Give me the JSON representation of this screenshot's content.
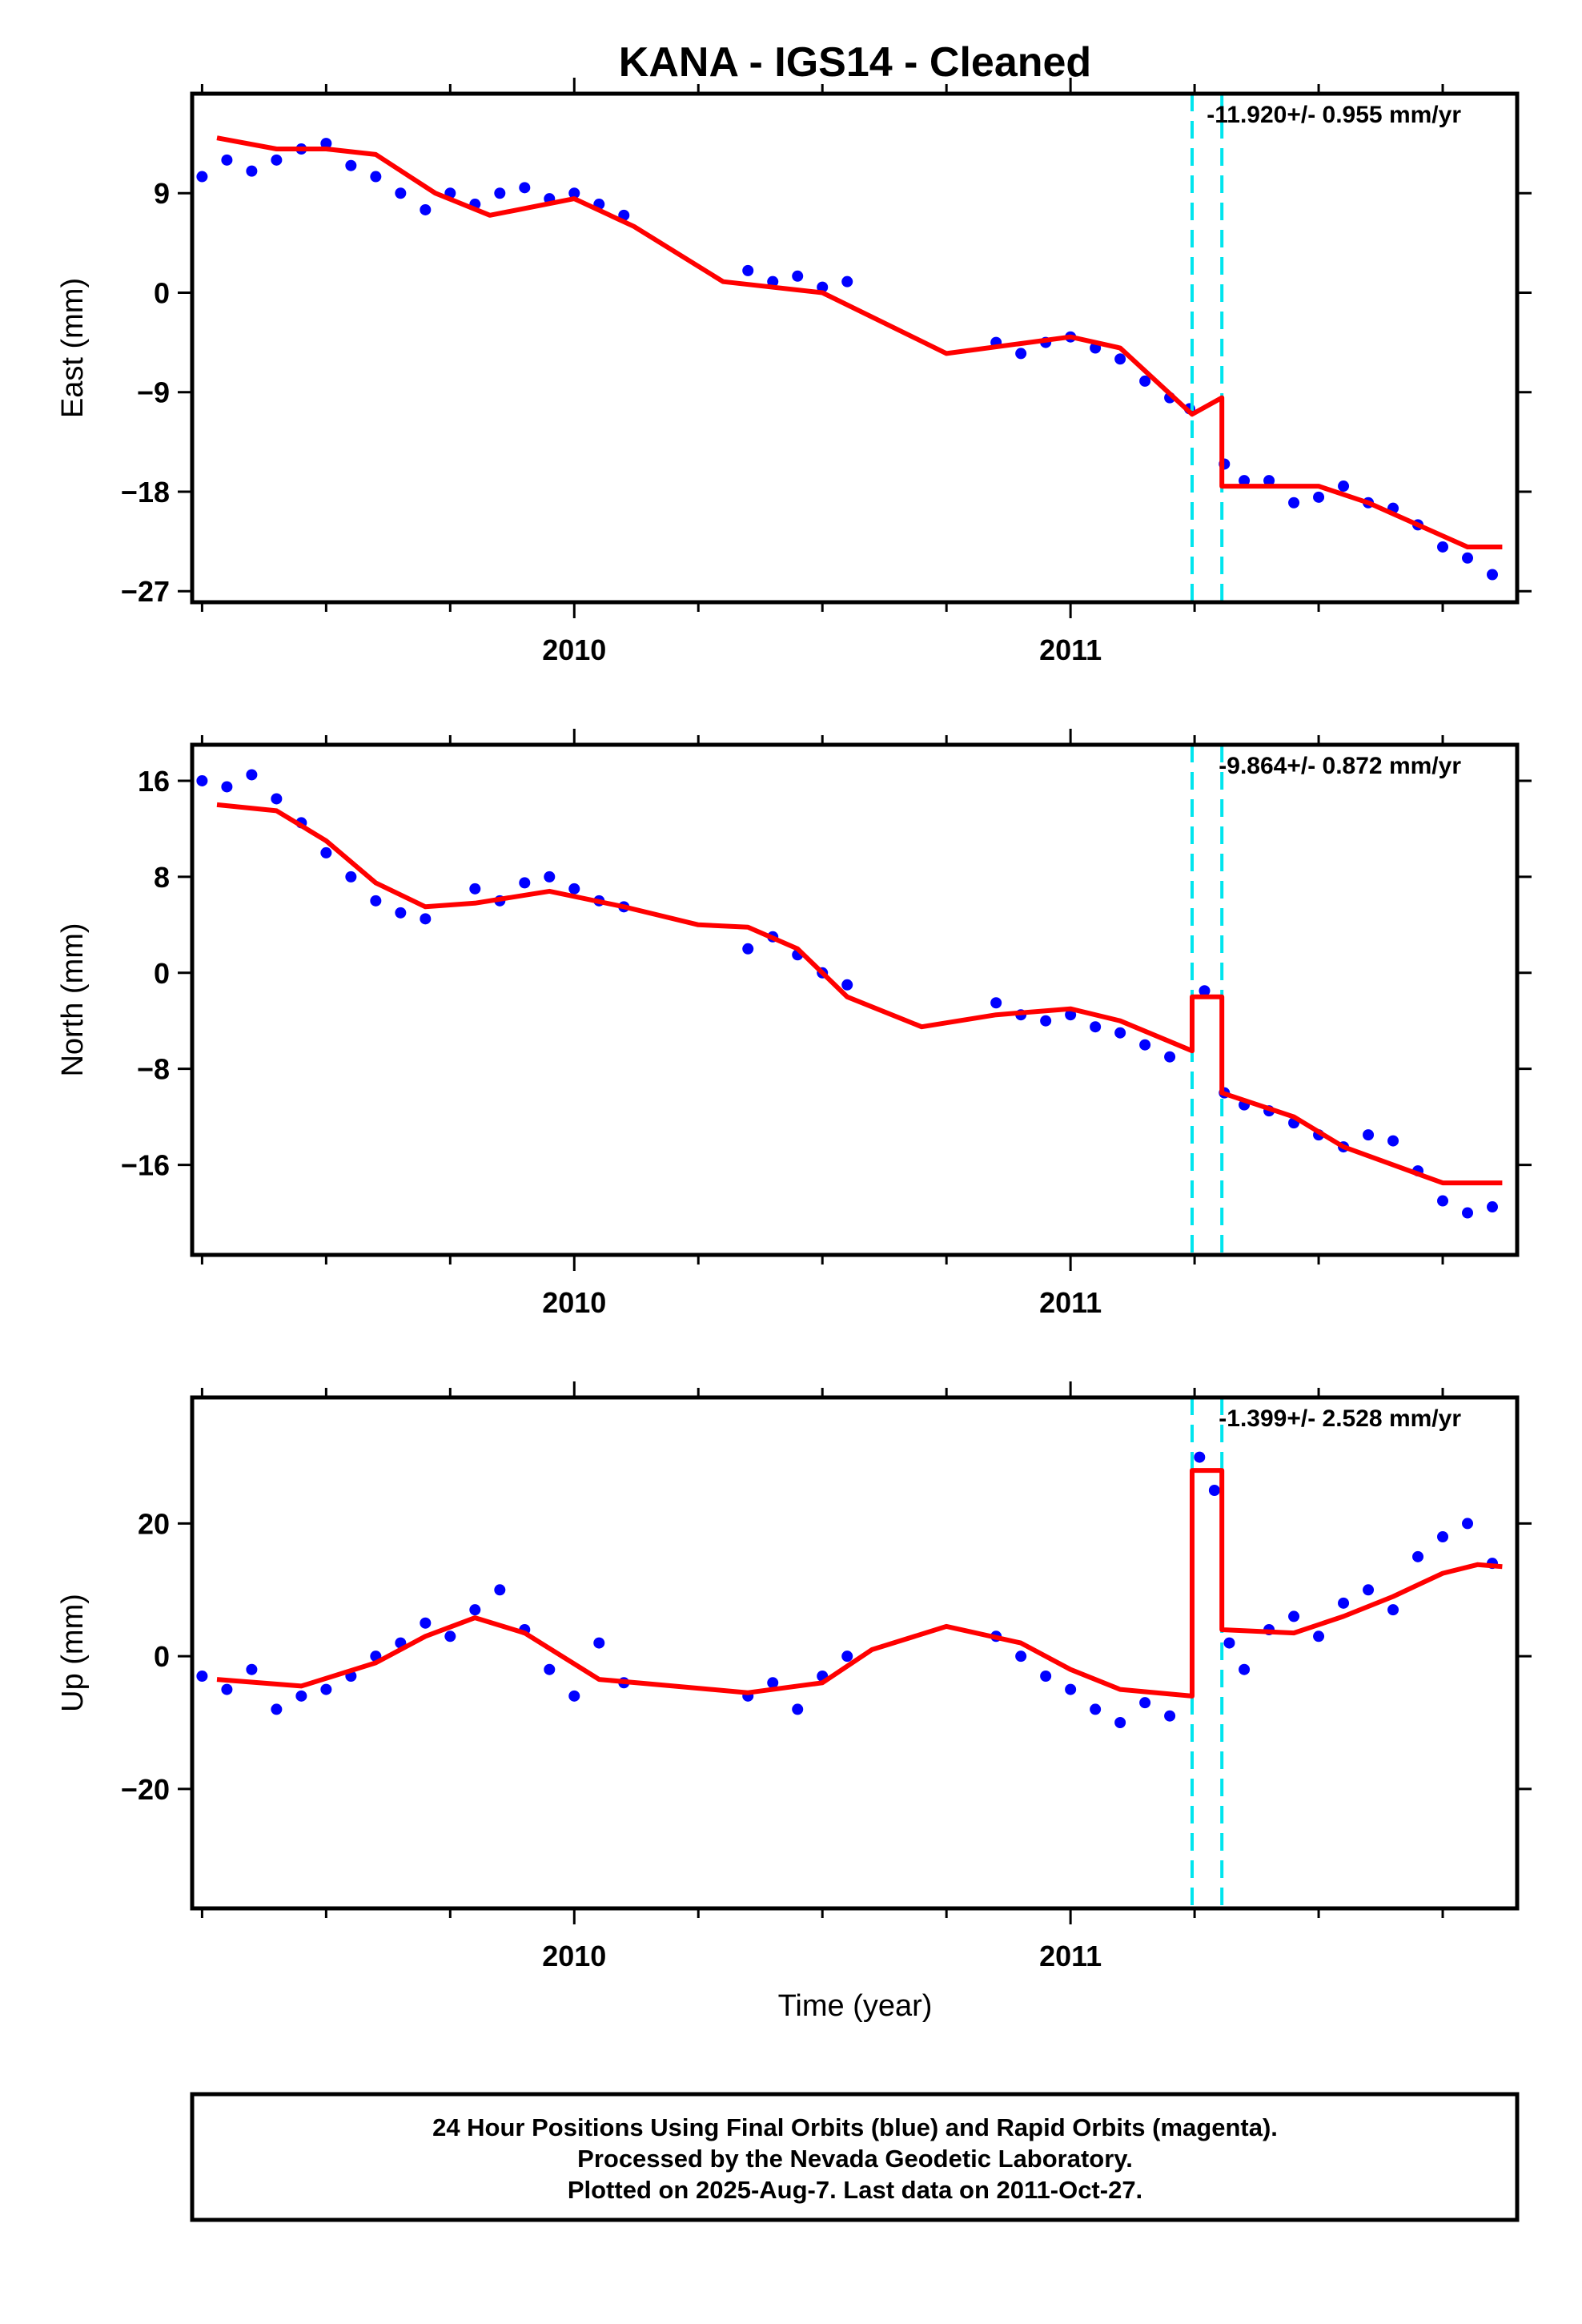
{
  "title": "KANA  - IGS14 - Cleaned",
  "xlabel": "Time (year)",
  "footer": {
    "line1": "24 Hour Positions Using Final Orbits (blue) and Rapid Orbits (magenta).",
    "line2": "Processed by the Nevada Geodetic Laboratory.",
    "line3": "Plotted on 2025-Aug-7. Last data on 2011-Oct-27."
  },
  "colors": {
    "points": "#0000ff",
    "model": "#ff0000",
    "steps": "#00e5ee",
    "frame": "#000000"
  },
  "chart_data": [
    {
      "type": "scatter",
      "ylabel": "East (mm)",
      "rate_text": "-11.920+/- 0.955 mm/yr",
      "x_range": [
        2009.23,
        2011.9
      ],
      "y_range": [
        -28,
        18
      ],
      "x_ticks": [
        2010,
        2011
      ],
      "y_ticks": [
        9,
        0,
        -9,
        -18,
        -27
      ],
      "step_epochs": [
        2011.245,
        2011.305
      ],
      "model": [
        [
          2009.28,
          14
        ],
        [
          2009.4,
          13
        ],
        [
          2009.5,
          13
        ],
        [
          2009.6,
          12.5
        ],
        [
          2009.72,
          9
        ],
        [
          2009.83,
          7
        ],
        [
          2010.0,
          8.5
        ],
        [
          2010.12,
          6
        ],
        [
          2010.3,
          1
        ],
        [
          2010.5,
          0
        ],
        [
          2010.75,
          -5.5
        ],
        [
          2011.0,
          -4
        ],
        [
          2011.1,
          -5
        ],
        [
          2011.245,
          -11
        ]
      ],
      "model2": [
        [
          2011.305,
          -9.5
        ],
        [
          2011.305,
          -17.5
        ],
        [
          2011.5,
          -17.5
        ],
        [
          2011.6,
          -19
        ],
        [
          2011.8,
          -23
        ],
        [
          2011.87,
          -23
        ]
      ],
      "points": [
        [
          2009.25,
          10.5
        ],
        [
          2009.3,
          12
        ],
        [
          2009.35,
          11
        ],
        [
          2009.4,
          12
        ],
        [
          2009.45,
          13
        ],
        [
          2009.5,
          13.5
        ],
        [
          2009.55,
          11.5
        ],
        [
          2009.6,
          10.5
        ],
        [
          2009.65,
          9
        ],
        [
          2009.7,
          7.5
        ],
        [
          2009.75,
          9
        ],
        [
          2009.8,
          8
        ],
        [
          2009.85,
          9
        ],
        [
          2009.9,
          9.5
        ],
        [
          2009.95,
          8.5
        ],
        [
          2010.0,
          9
        ],
        [
          2010.05,
          8
        ],
        [
          2010.1,
          7
        ],
        [
          2010.35,
          2
        ],
        [
          2010.4,
          1
        ],
        [
          2010.45,
          1.5
        ],
        [
          2010.5,
          0.5
        ],
        [
          2010.55,
          1
        ],
        [
          2010.85,
          -4.5
        ],
        [
          2010.9,
          -5.5
        ],
        [
          2010.95,
          -4.5
        ],
        [
          2011.0,
          -4
        ],
        [
          2011.05,
          -5
        ],
        [
          2011.1,
          -6
        ],
        [
          2011.15,
          -8
        ],
        [
          2011.2,
          -9.5
        ],
        [
          2011.24,
          -10.5
        ],
        [
          2011.31,
          -15.5
        ],
        [
          2011.35,
          -17
        ],
        [
          2011.4,
          -17
        ],
        [
          2011.45,
          -19
        ],
        [
          2011.5,
          -18.5
        ],
        [
          2011.55,
          -17.5
        ],
        [
          2011.6,
          -19
        ],
        [
          2011.65,
          -19.5
        ],
        [
          2011.7,
          -21
        ],
        [
          2011.75,
          -23
        ],
        [
          2011.8,
          -24
        ],
        [
          2011.85,
          -25.5
        ]
      ]
    },
    {
      "type": "scatter",
      "ylabel": "North (mm)",
      "rate_text": "-9.864+/- 0.872 mm/yr",
      "x_range": [
        2009.23,
        2011.9
      ],
      "y_range": [
        -23.5,
        19
      ],
      "x_ticks": [
        2010,
        2011
      ],
      "y_ticks": [
        16,
        8,
        0,
        -8,
        -16
      ],
      "step_epochs": [
        2011.245,
        2011.305
      ],
      "model": [
        [
          2009.28,
          14
        ],
        [
          2009.4,
          13.5
        ],
        [
          2009.5,
          11
        ],
        [
          2009.6,
          7.5
        ],
        [
          2009.7,
          5.5
        ],
        [
          2009.8,
          5.8
        ],
        [
          2009.95,
          6.8
        ],
        [
          2010.1,
          5.5
        ],
        [
          2010.25,
          4
        ],
        [
          2010.35,
          3.8
        ],
        [
          2010.45,
          2
        ],
        [
          2010.55,
          -2
        ],
        [
          2010.7,
          -4.5
        ],
        [
          2010.85,
          -3.5
        ],
        [
          2011.0,
          -3
        ],
        [
          2011.1,
          -4
        ],
        [
          2011.245,
          -6.5
        ]
      ],
      "model2": [
        [
          2011.245,
          -2
        ],
        [
          2011.305,
          -2
        ],
        [
          2011.305,
          -10
        ],
        [
          2011.45,
          -12
        ],
        [
          2011.55,
          -14.5
        ],
        [
          2011.65,
          -16
        ],
        [
          2011.75,
          -17.5
        ],
        [
          2011.87,
          -17.5
        ]
      ],
      "points": [
        [
          2009.25,
          16
        ],
        [
          2009.3,
          15.5
        ],
        [
          2009.35,
          16.5
        ],
        [
          2009.4,
          14.5
        ],
        [
          2009.45,
          12.5
        ],
        [
          2009.5,
          10
        ],
        [
          2009.55,
          8
        ],
        [
          2009.6,
          6
        ],
        [
          2009.65,
          5
        ],
        [
          2009.7,
          4.5
        ],
        [
          2009.8,
          7
        ],
        [
          2009.85,
          6
        ],
        [
          2009.9,
          7.5
        ],
        [
          2009.95,
          8
        ],
        [
          2010.0,
          7
        ],
        [
          2010.05,
          6
        ],
        [
          2010.1,
          5.5
        ],
        [
          2010.35,
          2
        ],
        [
          2010.4,
          3
        ],
        [
          2010.45,
          1.5
        ],
        [
          2010.5,
          0
        ],
        [
          2010.55,
          -1
        ],
        [
          2010.85,
          -2.5
        ],
        [
          2010.9,
          -3.5
        ],
        [
          2010.95,
          -4
        ],
        [
          2011.0,
          -3.5
        ],
        [
          2011.05,
          -4.5
        ],
        [
          2011.1,
          -5
        ],
        [
          2011.15,
          -6
        ],
        [
          2011.2,
          -7
        ],
        [
          2011.27,
          -1.5
        ],
        [
          2011.31,
          -10
        ],
        [
          2011.35,
          -11
        ],
        [
          2011.4,
          -11.5
        ],
        [
          2011.45,
          -12.5
        ],
        [
          2011.5,
          -13.5
        ],
        [
          2011.55,
          -14.5
        ],
        [
          2011.6,
          -13.5
        ],
        [
          2011.65,
          -14
        ],
        [
          2011.7,
          -16.5
        ],
        [
          2011.75,
          -19
        ],
        [
          2011.8,
          -20
        ],
        [
          2011.85,
          -19.5
        ]
      ]
    },
    {
      "type": "scatter",
      "ylabel": "Up (mm)",
      "rate_text": "-1.399+/- 2.528 mm/yr",
      "x_range": [
        2009.23,
        2011.9
      ],
      "y_range": [
        -38,
        39
      ],
      "x_ticks": [
        2010,
        2011
      ],
      "y_ticks": [
        20,
        0,
        -20
      ],
      "step_epochs": [
        2011.245,
        2011.305
      ],
      "model": [
        [
          2009.28,
          -3.5
        ],
        [
          2009.45,
          -4.5
        ],
        [
          2009.6,
          -1
        ],
        [
          2009.7,
          3
        ],
        [
          2009.8,
          5.8
        ],
        [
          2009.9,
          3.5
        ],
        [
          2010.05,
          -3.5
        ],
        [
          2010.2,
          -4.5
        ],
        [
          2010.35,
          -5.5
        ],
        [
          2010.5,
          -4
        ],
        [
          2010.6,
          1
        ],
        [
          2010.75,
          4.5
        ],
        [
          2010.9,
          2
        ],
        [
          2011.0,
          -2
        ],
        [
          2011.1,
          -5
        ],
        [
          2011.245,
          -6
        ]
      ],
      "model2": [
        [
          2011.245,
          28
        ],
        [
          2011.305,
          28
        ],
        [
          2011.305,
          4
        ],
        [
          2011.45,
          3.5
        ],
        [
          2011.55,
          6
        ],
        [
          2011.65,
          9
        ],
        [
          2011.75,
          12.5
        ],
        [
          2011.82,
          13.8
        ],
        [
          2011.87,
          13.5
        ]
      ],
      "points": [
        [
          2009.25,
          -3
        ],
        [
          2009.3,
          -5
        ],
        [
          2009.35,
          -2
        ],
        [
          2009.4,
          -8
        ],
        [
          2009.45,
          -6
        ],
        [
          2009.5,
          -5
        ],
        [
          2009.55,
          -3
        ],
        [
          2009.6,
          0
        ],
        [
          2009.65,
          2
        ],
        [
          2009.7,
          5
        ],
        [
          2009.75,
          3
        ],
        [
          2009.8,
          7
        ],
        [
          2009.85,
          10
        ],
        [
          2009.9,
          4
        ],
        [
          2009.95,
          -2
        ],
        [
          2010.0,
          -6
        ],
        [
          2010.05,
          2
        ],
        [
          2010.1,
          -4
        ],
        [
          2010.35,
          -6
        ],
        [
          2010.4,
          -4
        ],
        [
          2010.45,
          -8
        ],
        [
          2010.5,
          -3
        ],
        [
          2010.55,
          0
        ],
        [
          2010.85,
          3
        ],
        [
          2010.9,
          0
        ],
        [
          2010.95,
          -3
        ],
        [
          2011.0,
          -5
        ],
        [
          2011.05,
          -8
        ],
        [
          2011.1,
          -10
        ],
        [
          2011.15,
          -7
        ],
        [
          2011.2,
          -9
        ],
        [
          2011.26,
          30
        ],
        [
          2011.29,
          25
        ],
        [
          2011.32,
          2
        ],
        [
          2011.35,
          -2
        ],
        [
          2011.4,
          4
        ],
        [
          2011.45,
          6
        ],
        [
          2011.5,
          3
        ],
        [
          2011.55,
          8
        ],
        [
          2011.6,
          10
        ],
        [
          2011.65,
          7
        ],
        [
          2011.7,
          15
        ],
        [
          2011.75,
          18
        ],
        [
          2011.8,
          20
        ],
        [
          2011.85,
          14
        ]
      ]
    }
  ]
}
